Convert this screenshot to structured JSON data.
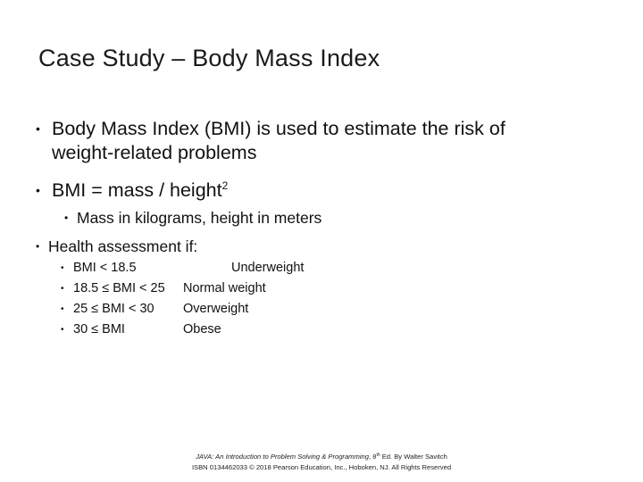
{
  "slide": {
    "title": "Case Study – Body Mass Index",
    "bullets": {
      "b1_line1": "Body Mass Index (BMI) is used to estimate the risk of",
      "b1_line2": "weight-related problems",
      "b2_prefix": "BMI = mass / height",
      "b2_sup": "2",
      "b2_sub": "Mass in kilograms, height in meters",
      "b3": "Health assessment if:"
    },
    "ranges": [
      {
        "condition": "BMI < 18.5",
        "category": "Underweight"
      },
      {
        "condition": "18.5 ≤ BMI < 25",
        "category": "Normal weight"
      },
      {
        "condition": "25 ≤ BMI < 30",
        "category": "Overweight"
      },
      {
        "condition": "30 ≤ BMI",
        "category": "Obese"
      }
    ],
    "bullet_glyph": "•"
  },
  "footer": {
    "book_title": "JAVA: An Introduction to Problem Solving & Programming",
    "edition_num": "8",
    "edition_sup": "th",
    "edition_rest": " Ed. By Walter Savitch",
    "isbn_line": "ISBN 0134462033 © 2018 Pearson Education, Inc., Hoboken, NJ. All Rights Reserved"
  }
}
